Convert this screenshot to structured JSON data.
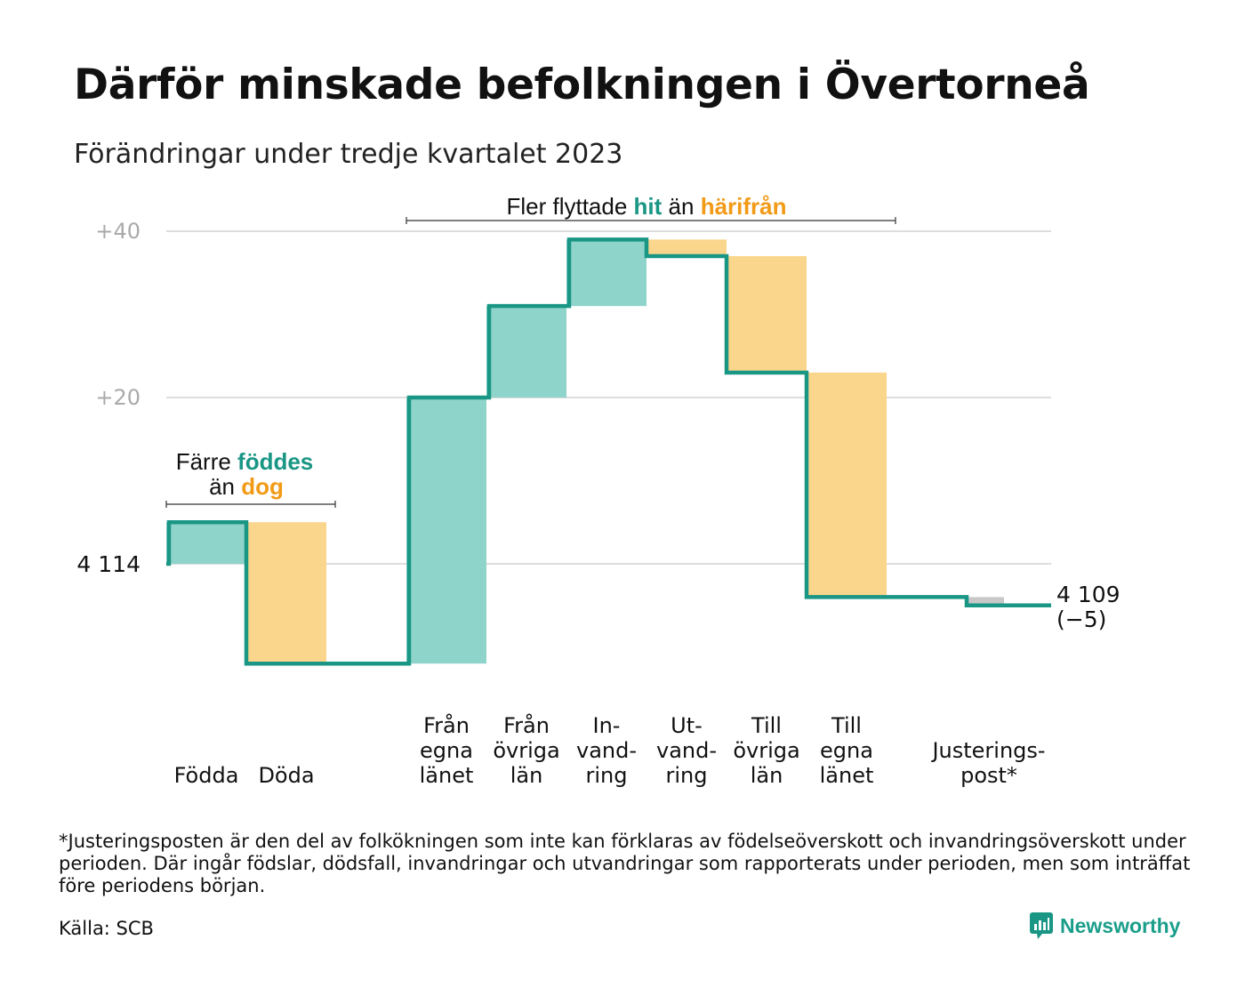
{
  "title": "Därför minskade befolkningen i Övertorneå",
  "subtitle": "Förändringar under tredje kvartalet 2023",
  "footnote": "*Justeringsposten är den del av folkökningen som inte kan förklaras av födelseöverskott och invandringsöverskott under perioden. Där ingår födslar, dödsfall, invandringar och utvandringar som rapporterats under perioden, men som inträffat före periodens början.",
  "source": "Källa: SCB",
  "brand": "Newsworthy",
  "colors": {
    "increase": "#8ed4cb",
    "decrease": "#fad58c",
    "adjustment": "#c8c8c8",
    "line": "#1a9685",
    "teal_text": "#1a9685",
    "orange_text": "#f29a16"
  },
  "annotations": {
    "births": {
      "line1_pre": "Färre ",
      "line1_em": "föddes",
      "line2_pre": "än ",
      "line2_em": "dog"
    },
    "migration": {
      "pre": "Fler flyttade ",
      "em1": "hit",
      "mid": " än ",
      "em2": "härifrån"
    }
  },
  "chart_data": {
    "type": "waterfall",
    "baseline": 4114,
    "baseline_label": "4  114",
    "end_value": 4109,
    "end_label": "4 109",
    "end_change_label": "(−5)",
    "yticks": [
      {
        "value": 20,
        "label": "+20"
      },
      {
        "value": 40,
        "label": "+40"
      }
    ],
    "ylim": [
      -12,
      42
    ],
    "steps": [
      {
        "label": [
          "",
          "",
          "Födda"
        ],
        "change": 5,
        "kind": "increase"
      },
      {
        "label": [
          "",
          "",
          "Döda"
        ],
        "change": -17,
        "kind": "decrease"
      },
      {
        "label": [],
        "change": 0,
        "kind": "none"
      },
      {
        "label": [
          "Från",
          "egna",
          "länet"
        ],
        "change": 32,
        "kind": "increase"
      },
      {
        "label": [
          "Från",
          "övriga",
          "län"
        ],
        "change": 11,
        "kind": "increase"
      },
      {
        "label": [
          "In-",
          "vand-",
          "ring"
        ],
        "change": 8,
        "kind": "increase"
      },
      {
        "label": [
          "Ut-",
          "vand-",
          "ring"
        ],
        "change": -2,
        "kind": "decrease"
      },
      {
        "label": [
          "Till",
          "övriga",
          "län"
        ],
        "change": -14,
        "kind": "decrease"
      },
      {
        "label": [
          "Till",
          "egna",
          "länet"
        ],
        "change": -27,
        "kind": "decrease"
      },
      {
        "label": [],
        "change": 0,
        "kind": "none"
      },
      {
        "label": [
          "",
          "Justerings-",
          "post*"
        ],
        "change": -1,
        "kind": "adjustment"
      }
    ]
  }
}
